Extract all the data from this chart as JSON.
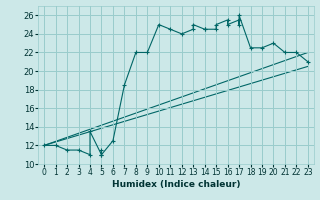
{
  "xlabel": "Humidex (Indice chaleur)",
  "bg_color": "#cce8e8",
  "grid_color": "#99cccc",
  "line_color": "#006666",
  "xlim": [
    -0.5,
    23.5
  ],
  "ylim": [
    10,
    27
  ],
  "yticks": [
    10,
    12,
    14,
    16,
    18,
    20,
    22,
    24,
    26
  ],
  "xticks": [
    0,
    1,
    2,
    3,
    4,
    5,
    6,
    7,
    8,
    9,
    10,
    11,
    12,
    13,
    14,
    15,
    16,
    17,
    18,
    19,
    20,
    21,
    22,
    23
  ],
  "main_x": [
    0,
    1,
    2,
    3,
    4,
    4,
    5,
    5,
    5,
    6,
    7,
    8,
    9,
    10,
    11,
    12,
    13,
    13,
    14,
    14,
    15,
    15,
    16,
    16,
    17,
    17,
    17,
    18,
    19,
    20,
    21,
    22,
    23
  ],
  "main_y": [
    12,
    12,
    11.5,
    11.5,
    11,
    13.5,
    11,
    11.5,
    11,
    12.5,
    18.5,
    22,
    22,
    25,
    24.5,
    24,
    24.5,
    25,
    24.5,
    24.5,
    24.5,
    25,
    25.5,
    25,
    25.5,
    25,
    26,
    22.5,
    22.5,
    23,
    22,
    22,
    21
  ],
  "line2_x": [
    0,
    23
  ],
  "line2_y": [
    12,
    22
  ],
  "line3_x": [
    0,
    23
  ],
  "line3_y": [
    12,
    20.5
  ],
  "marker": "+"
}
